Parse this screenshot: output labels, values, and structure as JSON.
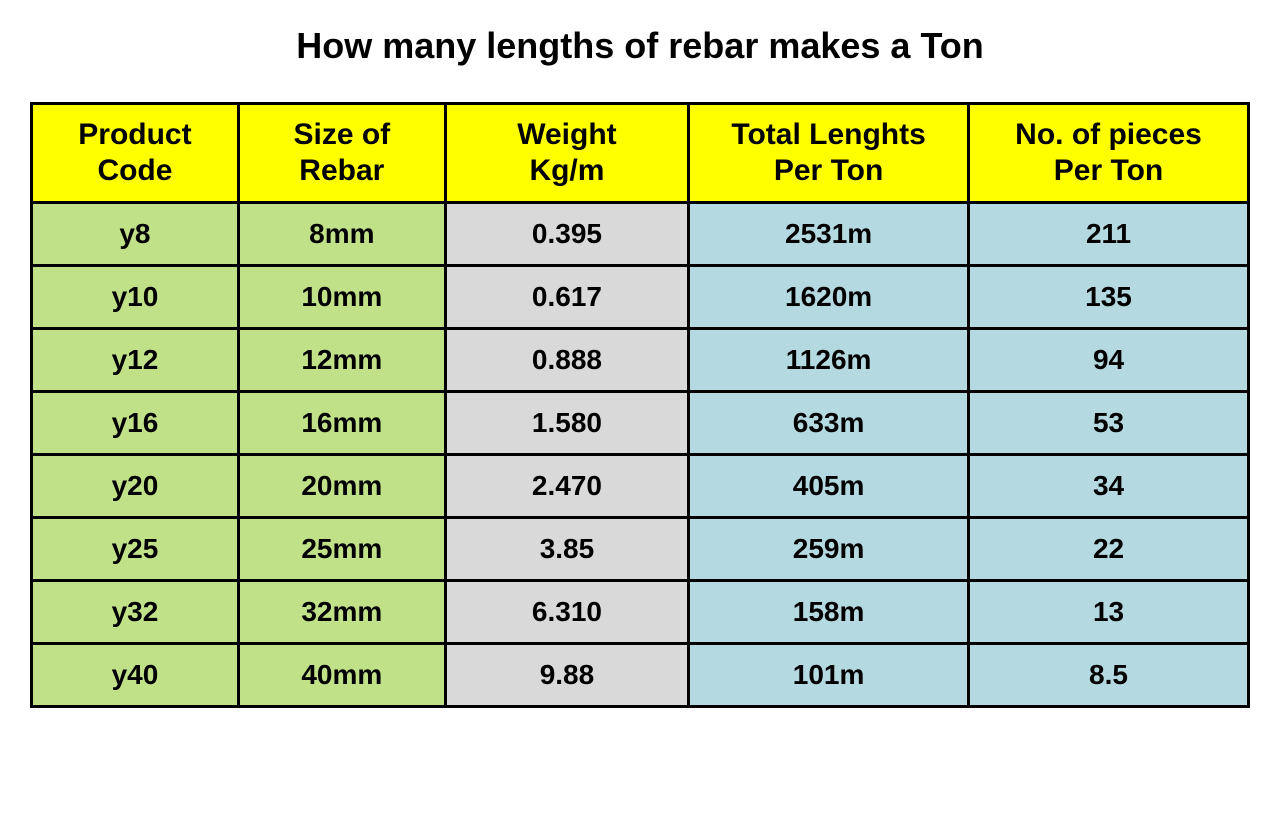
{
  "title": "How many lengths of rebar makes a Ton",
  "table": {
    "type": "table",
    "header_bg": "#ffff00",
    "col_bg": {
      "product": "#c1e189",
      "size": "#c1e189",
      "weight": "#d9d9d9",
      "length": "#b5d9e0",
      "pieces": "#b5d9e0"
    },
    "border_color": "#000000",
    "border_width": 3,
    "header_fontsize": 30,
    "cell_fontsize": 28,
    "columns": [
      {
        "line1": "Product",
        "line2": "Code",
        "width": "17%"
      },
      {
        "line1": "Size of",
        "line2": "Rebar",
        "width": "17%"
      },
      {
        "line1": "Weight",
        "line2": "Kg/m",
        "width": "20%"
      },
      {
        "line1": "Total Lenghts",
        "line2": "Per Ton",
        "width": "23%"
      },
      {
        "line1": "No. of pieces",
        "line2": "Per Ton",
        "width": "23%"
      }
    ],
    "rows": [
      {
        "product": "y8",
        "size": "8mm",
        "weight": "0.395",
        "length": "2531m",
        "pieces": "211"
      },
      {
        "product": "y10",
        "size": "10mm",
        "weight": "0.617",
        "length": "1620m",
        "pieces": "135"
      },
      {
        "product": "y12",
        "size": "12mm",
        "weight": "0.888",
        "length": "1126m",
        "pieces": "94"
      },
      {
        "product": "y16",
        "size": "16mm",
        "weight": "1.580",
        "length": "633m",
        "pieces": "53"
      },
      {
        "product": "y20",
        "size": "20mm",
        "weight": "2.470",
        "length": "405m",
        "pieces": "34"
      },
      {
        "product": "y25",
        "size": "25mm",
        "weight": "3.85",
        "length": "259m",
        "pieces": "22"
      },
      {
        "product": "y32",
        "size": "32mm",
        "weight": "6.310",
        "length": "158m",
        "pieces": "13"
      },
      {
        "product": "y40",
        "size": "40mm",
        "weight": "9.88",
        "length": "101m",
        "pieces": "8.5"
      }
    ]
  }
}
